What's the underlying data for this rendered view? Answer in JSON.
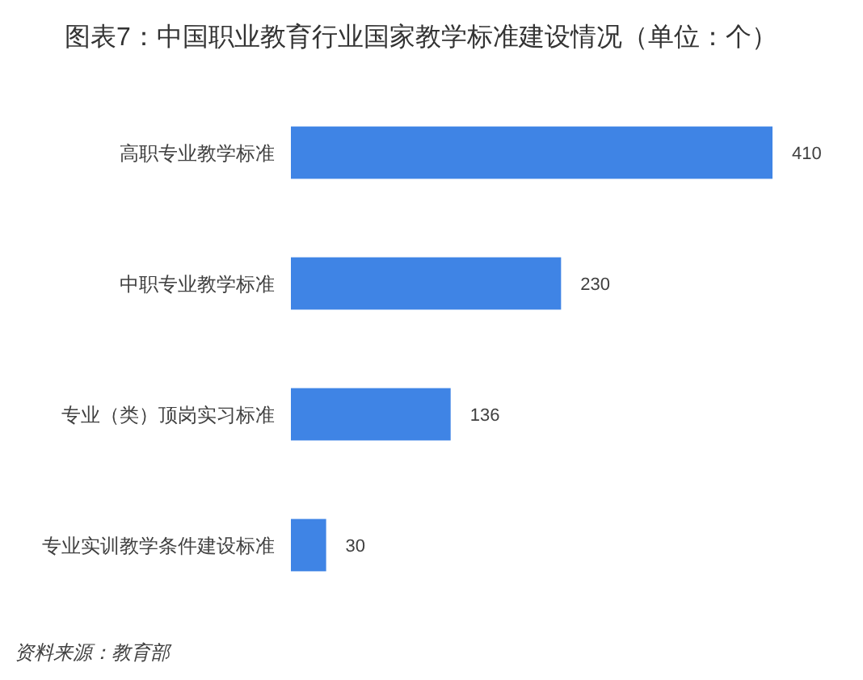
{
  "chart_data": {
    "type": "bar",
    "orientation": "horizontal",
    "title": "图表7：中国职业教育行业国家教学标准建设情况（单位：个）",
    "categories": [
      "高职专业教学标准",
      "中职专业教学标准",
      "专业（类）顶岗实习标准",
      "专业实训教学条件建设标准"
    ],
    "values": [
      410,
      230,
      136,
      30
    ],
    "color": "#3f84e5",
    "data_labels": true,
    "annotations": [
      "资料来源：教育部"
    ]
  }
}
